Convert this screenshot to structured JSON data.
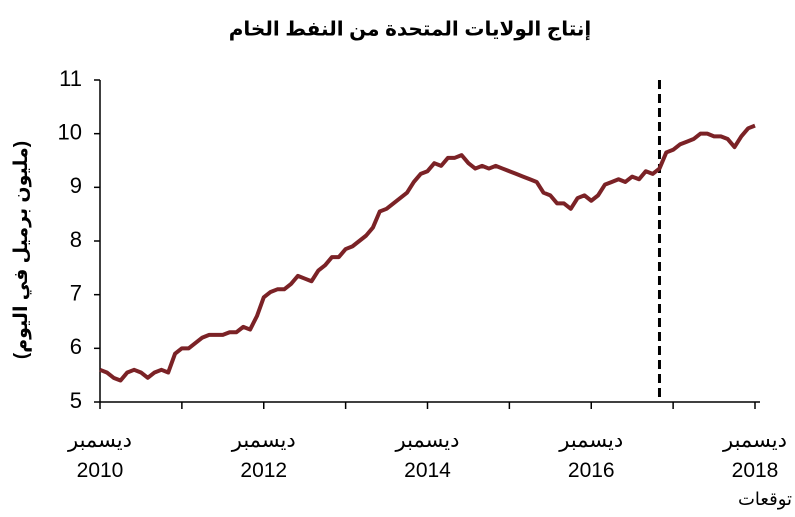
{
  "chart_data": {
    "type": "line",
    "title": "إنتاج الولايات المتحدة من النفط الخام",
    "y_label": "(مليون برميل في اليوم)",
    "categories": [
      "ديسمبر\n2010",
      null,
      null,
      null,
      null,
      null,
      null,
      null,
      null,
      null,
      null,
      null,
      null,
      null,
      null,
      null,
      null,
      null,
      null,
      null,
      null,
      null,
      null,
      null,
      "ديسمبر\n2012",
      null,
      null,
      null,
      null,
      null,
      null,
      null,
      null,
      null,
      null,
      null,
      null,
      null,
      null,
      null,
      null,
      null,
      null,
      null,
      null,
      null,
      null,
      null,
      "ديسمبر\n2014",
      null,
      null,
      null,
      null,
      null,
      null,
      null,
      null,
      null,
      null,
      null,
      null,
      null,
      null,
      null,
      null,
      null,
      null,
      null,
      null,
      null,
      null,
      null,
      "ديسمبر\n2016",
      null,
      null,
      null,
      null,
      null,
      null,
      null,
      null,
      null,
      null,
      null,
      null,
      null,
      null,
      null,
      null,
      null,
      null,
      null,
      null,
      null,
      null,
      null,
      "ديسمبر\n2018"
    ],
    "series": [
      {
        "color": "#7b2226",
        "values": [
          5.6,
          5.55,
          5.45,
          5.4,
          5.55,
          5.6,
          5.55,
          5.45,
          5.55,
          5.6,
          5.55,
          5.9,
          6.0,
          6.0,
          6.1,
          6.2,
          6.25,
          6.25,
          6.25,
          6.3,
          6.3,
          6.4,
          6.35,
          6.6,
          6.95,
          7.05,
          7.1,
          7.1,
          7.2,
          7.35,
          7.3,
          7.25,
          7.45,
          7.55,
          7.7,
          7.7,
          7.85,
          7.9,
          8.0,
          8.1,
          8.25,
          8.55,
          8.6,
          8.7,
          8.8,
          8.9,
          9.1,
          9.25,
          9.3,
          9.45,
          9.4,
          9.55,
          9.55,
          9.6,
          9.45,
          9.35,
          9.4,
          9.35,
          9.4,
          9.35,
          9.3,
          9.25,
          9.2,
          9.15,
          9.1,
          8.9,
          8.85,
          8.7,
          8.7,
          8.6,
          8.8,
          8.85,
          8.75,
          8.85,
          9.05,
          9.1,
          9.15,
          9.1,
          9.2,
          9.15,
          9.3,
          9.25,
          9.35,
          9.65,
          9.7,
          9.8,
          9.85,
          9.9,
          10.0,
          10.0,
          9.95,
          9.95,
          9.9,
          9.75,
          9.95,
          10.1,
          10.15
        ]
      }
    ],
    "ylim": [
      5,
      11
    ],
    "yticks": [
      5,
      6,
      7,
      8,
      9,
      10,
      11
    ],
    "annotation": {
      "text": "توقعات",
      "category_index": 82
    }
  }
}
